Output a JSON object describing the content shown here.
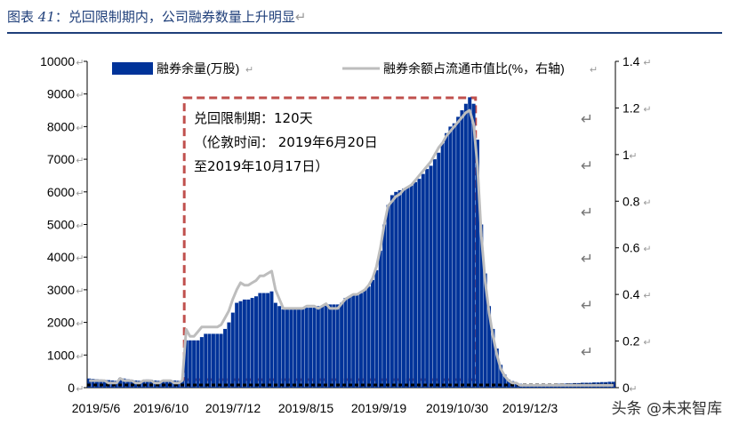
{
  "figure": {
    "label": "图表",
    "number": "41",
    "caption": "：兑回限制期内，公司融券数量上升明显",
    "return_mark": "↵"
  },
  "watermark": "头条 @未来智库",
  "annotation": {
    "line1": "兑回限制期：120天",
    "line2": "（伦敦时间： 2019年6月20日",
    "line3": "至2019年10月17日）"
  },
  "colors": {
    "bars": "#003399",
    "line": "#bdbdbd",
    "box": "#c0504d",
    "title": "#1f3f7a"
  },
  "chart_data": {
    "type": "bar",
    "legend": {
      "placement": "top",
      "bar_label": "融券余量(万股)",
      "line_label": "融券余额占流通市值比(%，右轴)"
    },
    "x_tick_labels": [
      "2019/5/6",
      "2019/6/10",
      "2019/7/12",
      "2019/8/15",
      "2019/9/19",
      "2019/10/30",
      "2019/12/3"
    ],
    "y_left": {
      "min": 0,
      "max": 10000,
      "ticks": [
        "0",
        "1000",
        "2000",
        "3000",
        "4000",
        "5000",
        "6000",
        "7000",
        "8000",
        "9000",
        "10000"
      ]
    },
    "y_right": {
      "min": 0,
      "max": 1.4,
      "ticks": [
        "0",
        "0.2",
        "0.4",
        "0.6",
        "0.8",
        "1",
        "1.2",
        "1.4"
      ]
    },
    "grid": false,
    "highlight_period": {
      "start_index": 25,
      "end_index": 99
    },
    "series": [
      {
        "name": "融券余量(万股)",
        "kind": "bar",
        "axis": "left",
        "values": [
          280,
          270,
          260,
          250,
          240,
          230,
          220,
          210,
          300,
          280,
          260,
          240,
          220,
          210,
          230,
          250,
          240,
          220,
          210,
          230,
          240,
          230,
          220,
          210,
          230,
          1450,
          1450,
          1450,
          1450,
          1550,
          1650,
          1650,
          1650,
          1650,
          1650,
          1800,
          2000,
          2300,
          2600,
          2650,
          2700,
          2700,
          2750,
          2800,
          2900,
          2900,
          2900,
          2950,
          2600,
          2500,
          2400,
          2450,
          2450,
          2450,
          2450,
          2450,
          2450,
          2450,
          2450,
          2500,
          2500,
          2550,
          2550,
          2550,
          2550,
          2600,
          2750,
          2800,
          2850,
          2850,
          2900,
          3000,
          3100,
          3300,
          3600,
          4200,
          5000,
          5600,
          5900,
          6000,
          6050,
          6100,
          6150,
          6200,
          6300,
          6400,
          6550,
          6700,
          6800,
          7000,
          7200,
          7500,
          7800,
          8000,
          8100,
          8300,
          8500,
          8700,
          8900,
          8700,
          7600,
          5000,
          3500,
          2500,
          1800,
          1200,
          700,
          400,
          250,
          200,
          150,
          120,
          110,
          100,
          100,
          100,
          110,
          110,
          110,
          110,
          110,
          120,
          120,
          130,
          130,
          140,
          140,
          150,
          150,
          150,
          160,
          160,
          170,
          170,
          180,
          180
        ]
      },
      {
        "name": "融券余额占流通市值比(%，右轴)",
        "kind": "line",
        "axis": "right",
        "values": [
          0.03,
          0.03,
          0.03,
          0.03,
          0.03,
          0.02,
          0.02,
          0.02,
          0.04,
          0.03,
          0.03,
          0.03,
          0.02,
          0.02,
          0.03,
          0.03,
          0.03,
          0.02,
          0.02,
          0.03,
          0.03,
          0.03,
          0.02,
          0.02,
          0.03,
          0.25,
          0.22,
          0.22,
          0.24,
          0.26,
          0.26,
          0.26,
          0.26,
          0.26,
          0.27,
          0.3,
          0.33,
          0.38,
          0.42,
          0.45,
          0.44,
          0.44,
          0.45,
          0.46,
          0.48,
          0.48,
          0.49,
          0.5,
          0.42,
          0.38,
          0.34,
          0.34,
          0.34,
          0.34,
          0.34,
          0.34,
          0.35,
          0.35,
          0.35,
          0.34,
          0.35,
          0.36,
          0.34,
          0.34,
          0.34,
          0.36,
          0.38,
          0.39,
          0.4,
          0.4,
          0.41,
          0.42,
          0.44,
          0.47,
          0.52,
          0.6,
          0.7,
          0.78,
          0.8,
          0.82,
          0.83,
          0.85,
          0.86,
          0.87,
          0.89,
          0.91,
          0.93,
          0.95,
          0.97,
          1.0,
          1.03,
          1.05,
          1.08,
          1.1,
          1.12,
          1.14,
          1.16,
          1.18,
          1.19,
          1.13,
          0.95,
          0.65,
          0.45,
          0.32,
          0.22,
          0.14,
          0.08,
          0.05,
          0.03,
          0.02,
          0.02,
          0.01,
          0.01,
          0.01,
          0.01,
          0.01,
          0.01,
          0.01,
          0.01,
          0.01,
          0.01,
          0.01,
          0.01,
          0.01,
          0.01,
          0.01,
          0.01,
          0.01,
          0.01,
          0.01,
          0.01,
          0.01,
          0.01,
          0.01,
          0.01,
          0.01
        ]
      }
    ]
  }
}
